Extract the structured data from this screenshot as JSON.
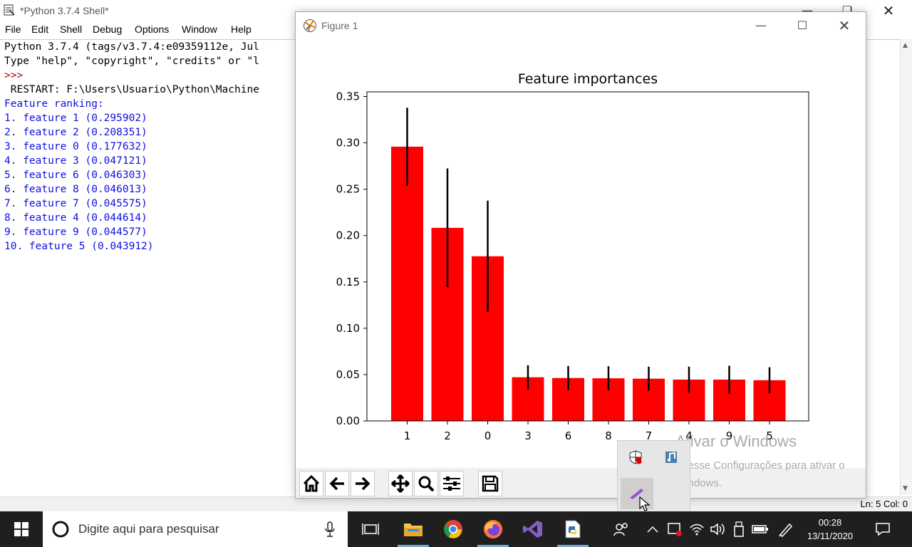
{
  "shell": {
    "title": "*Python 3.7.4 Shell*",
    "menu": [
      "File",
      "Edit",
      "Shell",
      "Debug",
      "Options",
      "Window",
      "Help"
    ],
    "lines": [
      {
        "text": "Python 3.7.4 (tags/v3.7.4:e09359112e, Jul",
        "color": "#000000"
      },
      {
        "text": "Type \"help\", \"copyright\", \"credits\" or \"l",
        "color": "#000000"
      },
      {
        "text": ">>>",
        "color": "#b00000"
      },
      {
        "text": " RESTART: F:\\Users\\Usuario\\Python\\Machine",
        "color": "#000000"
      },
      {
        "text": "Feature ranking:",
        "color": "#1010e0"
      },
      {
        "text": "1. feature 1 (0.295902)",
        "color": "#1010e0"
      },
      {
        "text": "2. feature 2 (0.208351)",
        "color": "#1010e0"
      },
      {
        "text": "3. feature 0 (0.177632)",
        "color": "#1010e0"
      },
      {
        "text": "4. feature 3 (0.047121)",
        "color": "#1010e0"
      },
      {
        "text": "5. feature 6 (0.046303)",
        "color": "#1010e0"
      },
      {
        "text": "6. feature 8 (0.046013)",
        "color": "#1010e0"
      },
      {
        "text": "7. feature 7 (0.045575)",
        "color": "#1010e0"
      },
      {
        "text": "8. feature 4 (0.044614)",
        "color": "#1010e0"
      },
      {
        "text": "9. feature 9 (0.044577)",
        "color": "#1010e0"
      },
      {
        "text": "10. feature 5 (0.043912)",
        "color": "#1010e0"
      }
    ],
    "status": "Ln: 5   Col: 0"
  },
  "figure": {
    "title": "Figure 1",
    "toolbar": [
      "home-icon",
      "back-arrow-icon",
      "forward-arrow-icon",
      "pan-icon",
      "zoom-icon",
      "configure-subplots-icon",
      "save-icon"
    ]
  },
  "chart_data": {
    "type": "bar",
    "title": "Feature importances",
    "categories": [
      "1",
      "2",
      "0",
      "3",
      "6",
      "8",
      "7",
      "4",
      "9",
      "5"
    ],
    "values": [
      0.295902,
      0.208351,
      0.177632,
      0.047121,
      0.046303,
      0.046013,
      0.045575,
      0.044614,
      0.044577,
      0.043912
    ],
    "errors": [
      0.042,
      0.064,
      0.06,
      0.013,
      0.013,
      0.013,
      0.013,
      0.014,
      0.015,
      0.014
    ],
    "bar_color": "#ff0000",
    "ylim": [
      0,
      0.355
    ],
    "yticks": [
      "0.00",
      "0.05",
      "0.10",
      "0.15",
      "0.20",
      "0.25",
      "0.30",
      "0.35"
    ],
    "grid": false
  },
  "watermark": {
    "line1": "Ativar o Windows",
    "line2": "Acesse Configurações para ativar o Windows."
  },
  "taskbar": {
    "search_placeholder": "Digite aqui para pesquisar",
    "time": "00:28",
    "date": "13/11/2020"
  }
}
